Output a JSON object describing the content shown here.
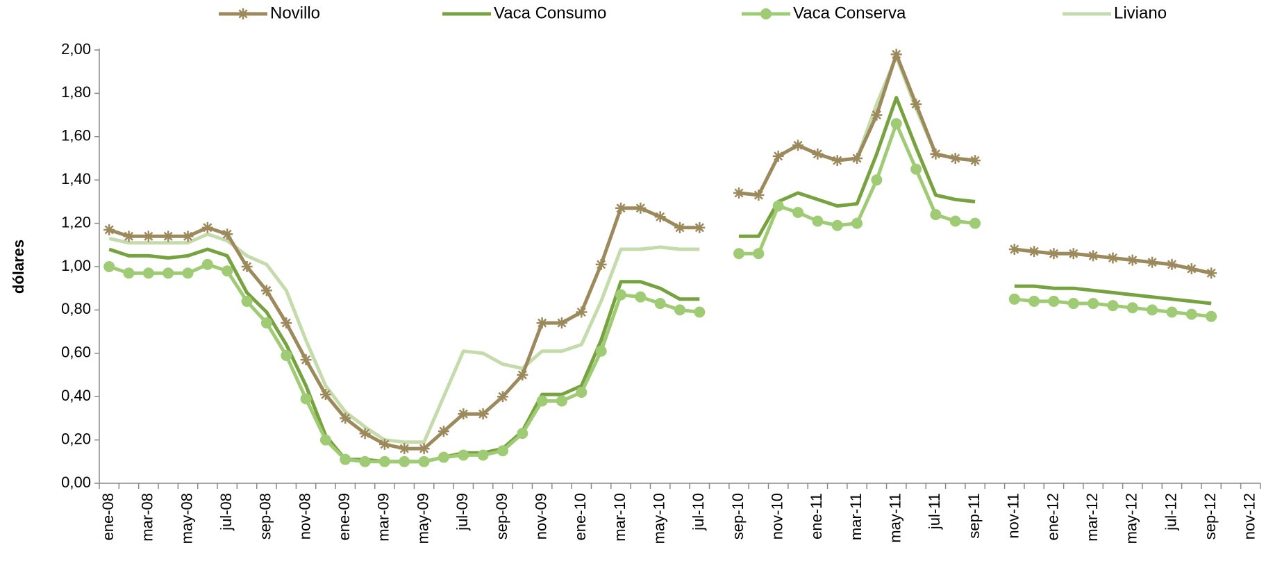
{
  "chart_data": {
    "type": "line",
    "y_label": "dólares",
    "categories": [
      "ene-08",
      null,
      "mar-08",
      null,
      "may-08",
      null,
      "jul-08",
      null,
      "sep-08",
      null,
      "nov-08",
      null,
      "ene-09",
      null,
      "mar-09",
      null,
      "may-09",
      null,
      "jul-09",
      null,
      "sep-09",
      null,
      "nov-09",
      null,
      "ene-10",
      null,
      "mar-10",
      null,
      "may-10",
      null,
      "jul-10",
      null,
      "sep-10",
      null,
      "nov-10",
      null,
      "ene-11",
      null,
      "mar-11",
      null,
      "may-11",
      null,
      "jul-11",
      null,
      "sep-11",
      null,
      "nov-11",
      null,
      "ene-12",
      null,
      "mar-12",
      null,
      "may-12",
      null,
      "jul-12",
      null,
      "sep-12",
      null,
      "nov-12"
    ],
    "series": [
      {
        "name": "Novillo",
        "color": "#9c8a5c",
        "marker": "star",
        "values": [
          1.17,
          1.14,
          1.14,
          1.14,
          1.14,
          1.18,
          1.15,
          1.0,
          0.89,
          0.74,
          0.57,
          0.41,
          0.3,
          0.23,
          0.18,
          0.16,
          0.16,
          0.24,
          0.32,
          0.32,
          0.4,
          0.5,
          0.74,
          0.74,
          0.79,
          1.01,
          1.27,
          1.27,
          1.23,
          1.18,
          1.18,
          null,
          1.34,
          1.33,
          1.51,
          1.56,
          1.52,
          1.49,
          1.5,
          1.7,
          1.98,
          1.75,
          1.52,
          1.5,
          1.49,
          null,
          1.08,
          1.07,
          1.06,
          1.06,
          1.05,
          1.04,
          1.03,
          1.02,
          1.01,
          0.99,
          0.97,
          null,
          null
        ]
      },
      {
        "name": "Vaca Consumo",
        "color": "#76a33f",
        "marker": "none",
        "values": [
          1.08,
          1.05,
          1.05,
          1.04,
          1.05,
          1.08,
          1.05,
          0.88,
          0.79,
          0.64,
          0.45,
          0.22,
          0.11,
          0.11,
          0.1,
          0.1,
          0.1,
          0.12,
          0.14,
          0.14,
          0.16,
          0.24,
          0.41,
          0.41,
          0.45,
          0.66,
          0.93,
          0.93,
          0.9,
          0.85,
          0.85,
          null,
          1.14,
          1.14,
          1.3,
          1.34,
          1.31,
          1.28,
          1.29,
          1.52,
          1.78,
          1.55,
          1.33,
          1.31,
          1.3,
          null,
          0.91,
          0.91,
          0.9,
          0.9,
          0.89,
          0.88,
          0.87,
          0.86,
          0.85,
          0.84,
          0.83,
          null,
          null
        ]
      },
      {
        "name": "Vaca Conserva",
        "color": "#9fcb74",
        "marker": "circle",
        "values": [
          1.0,
          0.97,
          0.97,
          0.97,
          0.97,
          1.01,
          0.98,
          0.84,
          0.74,
          0.59,
          0.39,
          0.2,
          0.11,
          0.1,
          0.1,
          0.1,
          0.1,
          0.12,
          0.13,
          0.13,
          0.15,
          0.23,
          0.38,
          0.38,
          0.42,
          0.61,
          0.87,
          0.86,
          0.83,
          0.8,
          0.79,
          null,
          1.06,
          1.06,
          1.28,
          1.25,
          1.21,
          1.19,
          1.2,
          1.4,
          1.66,
          1.45,
          1.24,
          1.21,
          1.2,
          null,
          0.85,
          0.84,
          0.84,
          0.83,
          0.83,
          0.82,
          0.81,
          0.8,
          0.79,
          0.78,
          0.77,
          null,
          null
        ]
      },
      {
        "name": "Liviano",
        "color": "#c6dbab",
        "marker": "none",
        "values": [
          1.13,
          1.11,
          1.11,
          1.11,
          1.11,
          1.15,
          1.12,
          1.05,
          1.01,
          0.89,
          0.66,
          0.45,
          0.33,
          0.26,
          0.2,
          0.19,
          0.19,
          0.4,
          0.61,
          0.6,
          0.55,
          0.53,
          0.61,
          0.61,
          0.64,
          0.84,
          1.08,
          1.08,
          1.09,
          1.08,
          1.08,
          null,
          1.34,
          1.33,
          1.51,
          1.56,
          1.52,
          1.49,
          1.5,
          1.75,
          1.97,
          1.73,
          1.52,
          1.5,
          1.49,
          null,
          1.08,
          1.07,
          1.06,
          1.06,
          1.05,
          1.04,
          1.03,
          1.02,
          1.01,
          0.99,
          0.97,
          null,
          null
        ]
      }
    ],
    "ylim": [
      0,
      2
    ],
    "yticks": [
      {
        "value": 0,
        "label": "0,00"
      },
      {
        "value": 0.2,
        "label": "0,20"
      },
      {
        "value": 0.4,
        "label": "0,40"
      },
      {
        "value": 0.6,
        "label": "0,60"
      },
      {
        "value": 0.8,
        "label": "0,80"
      },
      {
        "value": 1,
        "label": "1,00"
      },
      {
        "value": 1.2,
        "label": "1,20"
      },
      {
        "value": 1.4,
        "label": "1,40"
      },
      {
        "value": 1.6,
        "label": "1,60"
      },
      {
        "value": 1.8,
        "label": "1,80"
      },
      {
        "value": 2,
        "label": "2,00"
      }
    ],
    "grid": false,
    "legend": "top"
  }
}
